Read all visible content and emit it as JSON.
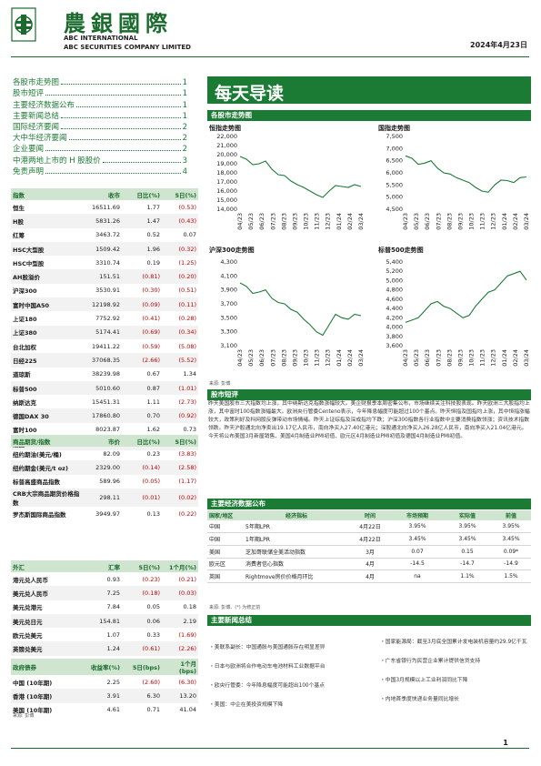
{
  "header": {
    "brand_cn": "農銀國際",
    "brand_en_1": "ABC INTERNATIONAL",
    "brand_en_2": "ABC SECURITIES COMPANY LIMITED",
    "date": "2024年4月23日",
    "accent": "#1b7a33"
  },
  "toc": [
    {
      "label": "各股市走势图",
      "page": "1"
    },
    {
      "label": "股市短评",
      "page": "1"
    },
    {
      "label": "主要经济数据公布",
      "page": "1"
    },
    {
      "label": "主要新闻总结",
      "page": "1"
    },
    {
      "label": "国际经济要闻",
      "page": "2"
    },
    {
      "label": "大中华经济要闻",
      "page": "2"
    },
    {
      "label": "企业要闻",
      "page": "2"
    },
    {
      "label": "中港两地上市的 H 股股价",
      "page": "3"
    },
    {
      "label": "免责声明",
      "page": "4"
    }
  ],
  "index_table": {
    "headers": [
      "指数",
      "收市",
      "日比(%)",
      "5日(%)"
    ],
    "rows": [
      [
        "恒生",
        "16511.69",
        "1.77",
        "(0.53)"
      ],
      [
        "H股",
        "5831.26",
        "1.47",
        "(0.43)"
      ],
      [
        "红筹",
        "3463.72",
        "0.52",
        "0.07"
      ],
      [
        "HSC大型股",
        "1509.42",
        "1.96",
        "(0.32)"
      ],
      [
        "HSC中型股",
        "3310.74",
        "0.19",
        "(1.25)"
      ],
      [
        "AH股溢价",
        "151.51",
        "(0.81)",
        "(0.20)"
      ],
      [
        "沪深300",
        "3530.91",
        "(0.30)",
        "(0.51)"
      ],
      [
        "富时中国A50",
        "12198.92",
        "(0.09)",
        "(0.11)"
      ],
      [
        "上证180",
        "7752.92",
        "(0.41)",
        "(0.28)"
      ],
      [
        "上证380",
        "5174.41",
        "(0.69)",
        "(0.34)"
      ],
      [
        "台北加权",
        "19411.22",
        "(0.59)",
        "(5.08)"
      ],
      [
        "日经225",
        "37068.35",
        "(2.66)",
        "(5.52)"
      ],
      [
        "道琼斯",
        "38239.98",
        "0.67",
        "1.34"
      ],
      [
        "标普500",
        "5010.60",
        "0.87",
        "(1.01)"
      ],
      [
        "纳斯达克",
        "15451.31",
        "1.11",
        "(2.73)"
      ],
      [
        "德国DAX 30",
        "17860.80",
        "0.70",
        "(0.92)"
      ],
      [
        "富时100",
        "8023.87",
        "1.62",
        "0.73"
      ],
      [
        "法国CAC 40",
        "8040.36",
        "0.22",
        "(0.06)"
      ]
    ]
  },
  "commodity_table": {
    "headers": [
      "商品期货/指数",
      "市价",
      "日比(%)",
      "5日(%)"
    ],
    "rows": [
      [
        "纽约期油(美元/桶)",
        "82.09",
        "0.23",
        "(3.83)"
      ],
      [
        "纽约期金(美元/t oz)",
        "2329.00",
        "(0.14)",
        "(2.58)"
      ],
      [
        "标普高盛商品指数",
        "589.96",
        "(0.05)",
        "(1.17)"
      ],
      [
        "CRB大宗商品期货价格指数",
        "298.11",
        "(0.01)",
        "(0.02)"
      ],
      [
        "罗杰斯国际商品指数",
        "3949.97",
        "0.13",
        "(0.22)"
      ]
    ]
  },
  "fx_table": {
    "headers": [
      "外汇",
      "汇率",
      "5日(%)",
      "1个月(%)"
    ],
    "rows": [
      [
        "港元兑人民币",
        "0.93",
        "(0.23)",
        "(0.21)"
      ],
      [
        "美元兑人民币",
        "7.25",
        "(0.18)",
        "(0.03)"
      ],
      [
        "美元兑港元",
        "7.84",
        "0.05",
        "0.18"
      ],
      [
        "美元兑日元",
        "154.81",
        "0.06",
        "2.19"
      ],
      [
        "欧元兑美元",
        "1.07",
        "0.33",
        "(1.69)"
      ],
      [
        "英镑兑美元",
        "1.24",
        "(0.61)",
        "(2.26)"
      ],
      [
        "澳元兑美元",
        "0.64",
        "0.73",
        "(1.39)"
      ]
    ]
  },
  "bond_table": {
    "headers": [
      "政府债券",
      "收益率(%)",
      "5日(bps)",
      "1个月(bps)"
    ],
    "rows": [
      [
        "中国 (10年期)",
        "2.25",
        "(2.60)",
        "(6.30)"
      ],
      [
        "香港 (10年期)",
        "3.91",
        "6.30",
        "13.20"
      ],
      [
        "美国 (10年期)",
        "4.61",
        "0.71",
        "41.04"
      ]
    ],
    "source": "来源: 彭博"
  },
  "banner": {
    "title": "每天导读"
  },
  "charts_section": {
    "title": "各股市走势图",
    "source": "来源: 彭博",
    "x_ticks": [
      "04/23",
      "05/23",
      "06/23",
      "07/23",
      "08/23",
      "09/23",
      "10/23",
      "11/23",
      "12/23",
      "01/24",
      "02/24",
      "03/24"
    ]
  },
  "chart_data": [
    {
      "type": "line",
      "title": "恒指走势图",
      "ylim": [
        14000,
        22000
      ],
      "y_ticks": [
        "22,000",
        "21,000",
        "20,000",
        "19,000",
        "18,000",
        "17,000",
        "16,000",
        "15,000",
        "14,000"
      ],
      "series": [
        {
          "values": [
            19800,
            19500,
            18900,
            19000,
            19300,
            18400,
            17800,
            17700,
            17100,
            16700,
            16400,
            16000,
            15600,
            15300,
            16000,
            16600,
            16500,
            16400,
            16700,
            16500
          ]
        }
      ]
    },
    {
      "type": "line",
      "title": "国指走势图",
      "ylim": [
        4500,
        7500
      ],
      "y_ticks": [
        "7,500",
        "7,000",
        "6,500",
        "6,000",
        "5,500",
        "5,000",
        "4,500"
      ],
      "series": [
        {
          "values": [
            6700,
            6600,
            6350,
            6400,
            6500,
            6200,
            6000,
            5950,
            5800,
            5700,
            5600,
            5400,
            5250,
            5200,
            5500,
            5700,
            5680,
            5600,
            5800,
            5830
          ]
        }
      ]
    },
    {
      "type": "line",
      "title": "沪深300走势图",
      "ylim": [
        3100,
        4300
      ],
      "y_ticks": [
        "4,300",
        "4,100",
        "3,900",
        "3,700",
        "3,500",
        "3,300",
        "3,100"
      ],
      "series": [
        {
          "values": [
            4000,
            3950,
            3850,
            3870,
            3900,
            3780,
            3720,
            3700,
            3620,
            3580,
            3480,
            3400,
            3300,
            3250,
            3400,
            3550,
            3500,
            3480,
            3550,
            3530
          ]
        }
      ]
    },
    {
      "type": "line",
      "title": "标普500走势图",
      "ylim": [
        3600,
        5400
      ],
      "y_ticks": [
        "5,400",
        "5,200",
        "5,000",
        "4,800",
        "4,600",
        "4,400",
        "4,200",
        "4,000",
        "3,800",
        "3,600"
      ],
      "series": [
        {
          "values": [
            4100,
            4150,
            4200,
            4350,
            4500,
            4550,
            4450,
            4400,
            4300,
            4200,
            4250,
            4450,
            4600,
            4750,
            4800,
            4950,
            5100,
            5150,
            5200,
            5010
          ]
        }
      ]
    }
  ],
  "commentary": {
    "title": "股市短评",
    "text": "昨天美国股市三大指数均上涨，其中纳斯达克指数涨幅较大。美企财报季本周密集公布，市场继续关注科技股表现。昨天欧洲三大股指均上涨，其中富时100指数涨幅最大。欧洲央行管委Centeno表示，今年降息幅度可能超过100个基点。昨天恒指及国指均上涨，其中恒指涨幅较大，政策利好及科网股反弹带动市场情绪。昨天上证综指及深成指均下跌；沪深300指数各行业指数中主要消费指数领涨；资讯技术指数领跌。昨天沪股通北向净卖出19.17亿人民币，南向净买入27.40亿港元；深股通北向净买入26.28亿人民币，南向净买入21.04亿港元。今天将公布美国3月新屋销售、美国4月制造业PMI初值、欧元区4月制造业PMI初值及德国4月制造业PMI初值。"
  },
  "econ_section": {
    "title": "主要经济数据公布",
    "headers": [
      "国家/地区",
      "经济指标",
      "时间",
      "市场预期",
      "实际值",
      "前值"
    ],
    "rows": [
      [
        "中国",
        "5年期LPR",
        "4月22日",
        "3.95%",
        "3.95%",
        "3.95%"
      ],
      [
        "中国",
        "1年期LPR",
        "4月22日",
        "3.45%",
        "3.45%",
        "3.45%"
      ],
      [
        "美国",
        "芝加哥联储全美活动指数",
        "3月",
        "0.07",
        "0.15",
        "0.09*"
      ],
      [
        "欧元区",
        "消费者信心指数",
        "4月",
        "-14.5",
        "-14.7",
        "-14.9"
      ],
      [
        "英国",
        "Rightmove房价价格月环比",
        "4月",
        "na",
        "1.1%",
        "1.5%"
      ]
    ],
    "source": "来源: 彭博、(*) 为修正前"
  },
  "news_section": {
    "title": "主要新闻总结",
    "left": [
      "・美联系副长：中国通胀与美国通胀存在明显差异",
      "・日本与欧洲将合作电动车电池材料工业数据平台",
      "・欧央行管委：今年降息幅度可能超出100个基点",
      "・美国：中企在美投资规模下降"
    ],
    "right": [
      "・国家能源局：截至3月底全国累计发电装机容量约29.9亿千瓦",
      "・广东省银行为民营企业累计提供信贷支持",
      "・中国3月规模以上工业利润同比下降",
      "・内地首季度快递业务量同比增长"
    ]
  },
  "footer": {
    "page": "1"
  }
}
